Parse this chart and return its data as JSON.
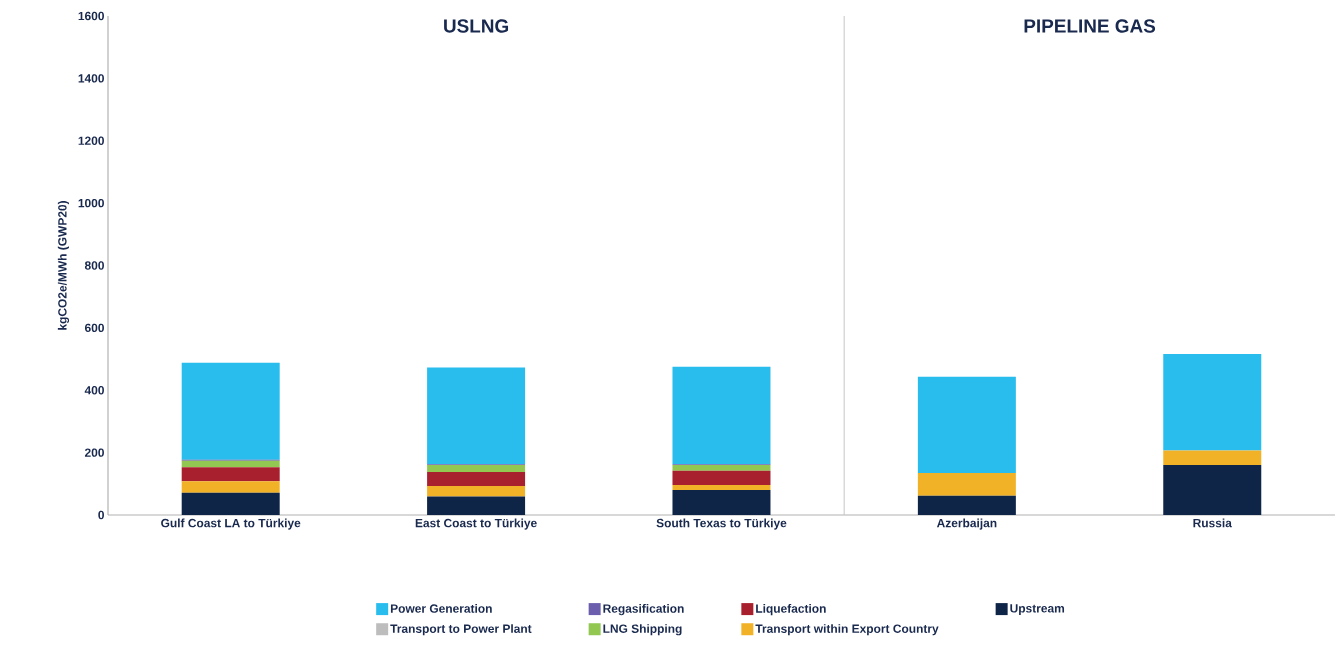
{
  "chart_data": {
    "type": "bar",
    "stacked": true,
    "ylabel": "kgCO2e/MWh (GWP20)",
    "categories": [
      "Gulf Coast LA to Türkiye",
      "East Coast to Türkiye",
      "South Texas to Türkiye",
      "Azerbaijan",
      "Russia"
    ],
    "series": [
      {
        "name": "Upstream",
        "color": "#0f2548",
        "values": [
          71,
          59,
          80,
          62,
          160
        ]
      },
      {
        "name": "Transport within Export Country",
        "color": "#f2b227",
        "values": [
          37,
          34,
          16,
          73,
          47
        ]
      },
      {
        "name": "Liquefaction",
        "color": "#a8202e",
        "values": [
          45,
          45,
          46,
          0,
          0
        ]
      },
      {
        "name": "LNG Shipping",
        "color": "#92c852",
        "values": [
          21,
          22,
          18,
          0,
          0
        ]
      },
      {
        "name": "Regasification",
        "color": "#6b5fad",
        "values": [
          3,
          3,
          3,
          0,
          0
        ]
      },
      {
        "name": "Transport to Power Plant",
        "color": "#bdbdbd",
        "values": [
          0,
          0,
          0,
          0,
          0
        ]
      },
      {
        "name": "Power Generation",
        "color": "#29bdee",
        "values": [
          311,
          310,
          312,
          308,
          309
        ]
      }
    ],
    "ylim": [
      0,
      1600
    ],
    "yticks": [
      0,
      200,
      400,
      600,
      800,
      1000,
      1200,
      1400,
      1600
    ],
    "annotations": [
      "USLNG",
      "PIPELINE GAS"
    ],
    "grid": false,
    "legend": "bottom"
  }
}
